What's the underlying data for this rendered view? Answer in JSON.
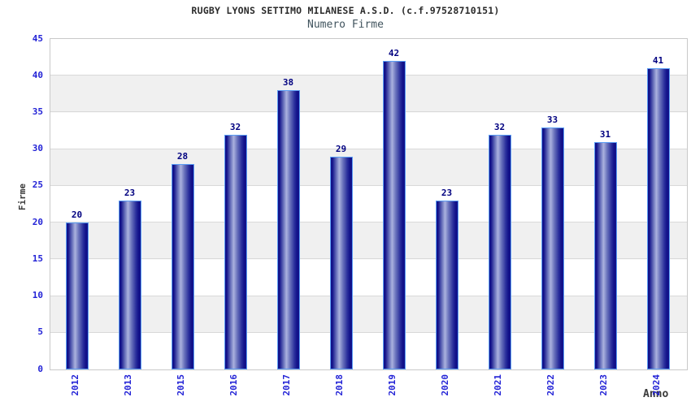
{
  "chart_data": {
    "type": "bar",
    "title": "RUGBY LYONS SETTIMO MILANESE A.S.D. (c.f.97528710151)",
    "subtitle": "Numero Firme",
    "xlabel": "Anno",
    "ylabel": "Firme",
    "categories": [
      "2012",
      "2013",
      "2015",
      "2016",
      "2017",
      "2018",
      "2019",
      "2020",
      "2021",
      "2022",
      "2023",
      "2024"
    ],
    "values": [
      20,
      23,
      28,
      32,
      38,
      29,
      42,
      23,
      32,
      33,
      31,
      41
    ],
    "ylim": [
      0,
      45
    ],
    "y_ticks": [
      0,
      5,
      10,
      15,
      20,
      25,
      30,
      35,
      40,
      45
    ],
    "grid": "horizontal-bands",
    "legend_position": "none"
  },
  "colors": {
    "tick_label": "#2323d6",
    "value_label": "#000080",
    "bar_dark": "#12128a",
    "bar_mid": "#6d76be",
    "bar_light": "#abb2de",
    "bar_outline": "#5b9ef5",
    "band_gray": "#f0f0f0",
    "band_white": "#ffffff",
    "grid_line": "#d9d9d9",
    "plot_border": "#c9c9c9",
    "title": "#2b2b2b",
    "subtitle": "#41545e",
    "axis_title": "#3a3a3a"
  }
}
